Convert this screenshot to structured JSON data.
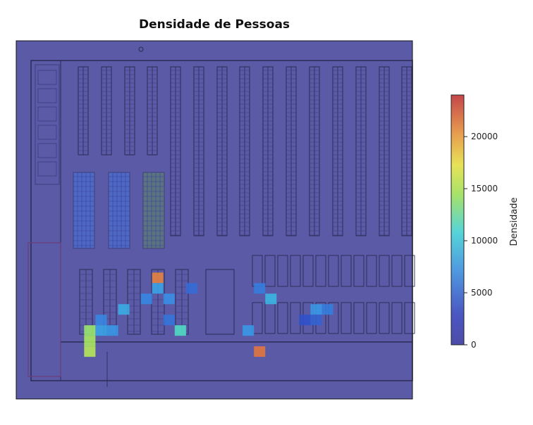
{
  "chart_data": {
    "type": "heatmap",
    "title": "Densidade de Pessoas",
    "colorbar": {
      "label": "Densidade",
      "min": 0,
      "max": 24000,
      "ticks": [
        {
          "value": 0,
          "label": "0"
        },
        {
          "value": 5000,
          "label": "5000"
        },
        {
          "value": 10000,
          "label": "10000"
        },
        {
          "value": 15000,
          "label": "15000"
        },
        {
          "value": 20000,
          "label": "20000"
        }
      ],
      "colormap": "jet",
      "alpha": 0.6
    },
    "background": "warehouse floor plan",
    "hotspots": [
      {
        "cell": [
          12,
          22
        ],
        "value": 21000
      },
      {
        "cell": [
          12,
          23
        ],
        "value": 8000
      },
      {
        "cell": [
          11,
          24
        ],
        "value": 6500
      },
      {
        "cell": [
          13,
          24
        ],
        "value": 7000
      },
      {
        "cell": [
          7,
          26
        ],
        "value": 6500
      },
      {
        "cell": [
          9,
          25
        ],
        "value": 8500
      },
      {
        "cell": [
          6,
          27
        ],
        "value": 14000
      },
      {
        "cell": [
          6,
          28
        ],
        "value": 14500
      },
      {
        "cell": [
          6,
          29
        ],
        "value": 15000
      },
      {
        "cell": [
          7,
          27
        ],
        "value": 8000
      },
      {
        "cell": [
          8,
          27
        ],
        "value": 7500
      },
      {
        "cell": [
          13,
          26
        ],
        "value": 5500
      },
      {
        "cell": [
          14,
          27
        ],
        "value": 11500
      },
      {
        "cell": [
          15,
          23
        ],
        "value": 5000
      },
      {
        "cell": [
          21,
          23
        ],
        "value": 6000
      },
      {
        "cell": [
          22,
          24
        ],
        "value": 9000
      },
      {
        "cell": [
          20,
          27
        ],
        "value": 7500
      },
      {
        "cell": [
          21,
          29
        ],
        "value": 21500
      },
      {
        "cell": [
          26,
          25
        ],
        "value": 7500
      },
      {
        "cell": [
          27,
          25
        ],
        "value": 6000
      },
      {
        "cell": [
          26,
          26
        ],
        "value": 4500
      },
      {
        "cell": [
          25,
          26
        ],
        "value": 3500
      }
    ]
  }
}
